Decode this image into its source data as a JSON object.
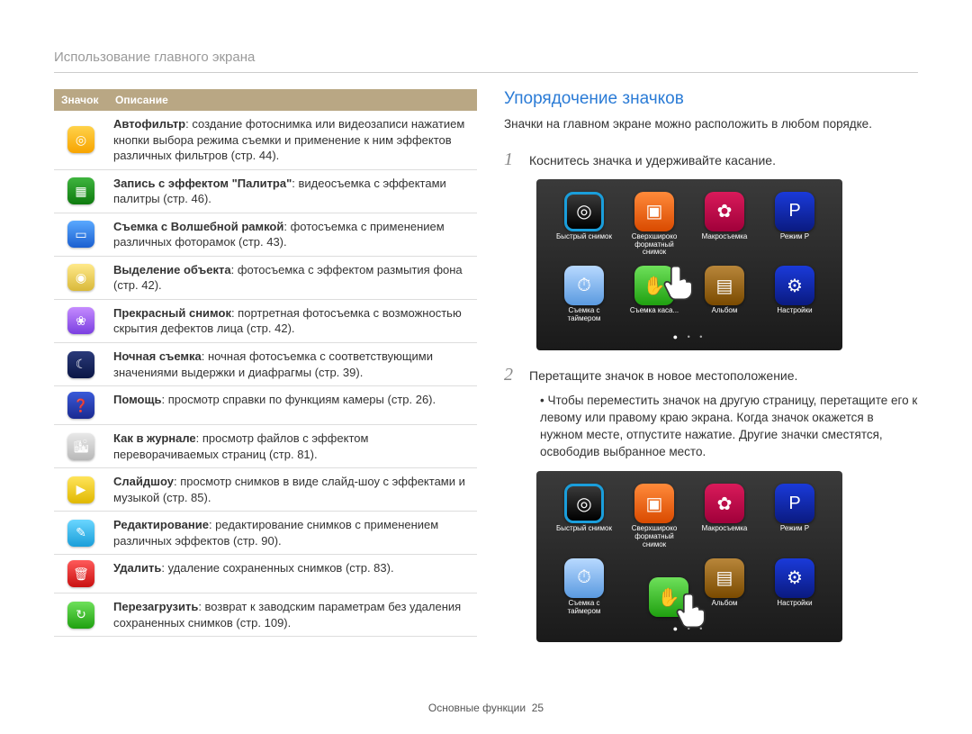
{
  "section_title": "Использование главного экрана",
  "table": {
    "header_icon": "Значок",
    "header_desc": "Описание",
    "rows": [
      {
        "icon_bg": "linear-gradient(#ffd24a,#f7a400)",
        "glyph": "◎",
        "bold": "Автофильтр",
        "rest": ": создание фотоснимка или видеозаписи нажатием кнопки выбора режима съемки и применение к ним эффектов различных фильтров (стр. 44)."
      },
      {
        "icon_bg": "linear-gradient(#3fb53f,#0e7a0e)",
        "glyph": "▦",
        "bold": "Запись с эффектом \"Палитра\"",
        "rest": ": видеосъемка с эффектами палитры (стр. 46)."
      },
      {
        "icon_bg": "linear-gradient(#5aa9ff,#1b5fd0)",
        "glyph": "▭",
        "bold": "Съемка с Волшебной рамкой",
        "rest": ": фотосъемка с применением различных фоторамок (стр. 43)."
      },
      {
        "icon_bg": "linear-gradient(#ffe98a,#d9b93a)",
        "glyph": "◉",
        "bold": "Выделение объекта",
        "rest": ": фотосъемка с эффектом размытия фона (стр. 42)."
      },
      {
        "icon_bg": "linear-gradient(#c58bff,#7a3fe0)",
        "glyph": "❀",
        "bold": "Прекрасный снимок",
        "rest": ": портретная фотосъемка с возможностью скрытия дефектов лица (стр. 42)."
      },
      {
        "icon_bg": "linear-gradient(#2a3a7a,#0a1645)",
        "glyph": "☾",
        "bold": "Ночная съемка",
        "rest": ": ночная фотосъемка с соответствующими значениями выдержки и диафрагмы (стр. 39)."
      },
      {
        "icon_bg": "linear-gradient(#3a5ad9,#1a2a90)",
        "glyph": "❓",
        "bold": "Помощь",
        "rest": ": просмотр справки по функциям камеры (стр. 26)."
      },
      {
        "icon_bg": "linear-gradient(#e8e8e8,#b8b8b8)",
        "glyph": "🏙",
        "bold": "Как в журнале",
        "rest": ": просмотр файлов с эффектом переворачиваемых страниц (стр. 81)."
      },
      {
        "icon_bg": "linear-gradient(#ffe45a,#e0b800)",
        "glyph": "▶",
        "bold": "Слайдшоу",
        "rest": ": просмотр снимков в виде слайд-шоу с эффектами и музыкой (стр. 85)."
      },
      {
        "icon_bg": "linear-gradient(#6ad6ff,#1a9ed9)",
        "glyph": "✎",
        "bold": "Редактирование",
        "rest": ": редактирование снимков с применением различных эффектов (стр. 90)."
      },
      {
        "icon_bg": "linear-gradient(#ff5a5a,#c91010)",
        "glyph": "🗑",
        "bold": "Удалить",
        "rest": ": удаление сохраненных снимков (стр. 83)."
      },
      {
        "icon_bg": "linear-gradient(#6ee05a,#1fa010)",
        "glyph": "↻",
        "bold": "Перезагрузить",
        "rest": ": возврат к заводским параметрам без удаления сохраненных снимков (стр. 109)."
      }
    ]
  },
  "right": {
    "heading": "Упорядочение значков",
    "intro": "Значки на главном экране можно расположить в любом порядке.",
    "step1_num": "1",
    "step1_text": "Коснитесь значка и удерживайте касание.",
    "step2_num": "2",
    "step2_text": "Перетащите значок в новое местоположение.",
    "bullet": "Чтобы переместить значок на другую страницу, перетащите его к левому или правому краю экрана. Когда значок окажется в нужном месте, отпустите нажатие. Другие значки сместятся, освободив выбранное место.",
    "preview1_icons": [
      {
        "bg": "linear-gradient(#3a3a3a,#000)",
        "border": "3px solid #1a9edb",
        "glyph": "◎",
        "label": "Быстрый снимок"
      },
      {
        "bg": "linear-gradient(#ff8a3a,#d94a00)",
        "glyph": "▣",
        "label": "Сверхшироко форматный снимок"
      },
      {
        "bg": "linear-gradient(#d91a5a,#a0003a)",
        "glyph": "✿",
        "label": "Макросъемка"
      },
      {
        "bg": "linear-gradient(#1a3ad9,#0a1a80)",
        "glyph": "P",
        "label": "Режим P"
      },
      {
        "bg": "linear-gradient(#b8d9ff,#5a9ae0)",
        "glyph": "⏱",
        "label": "Съемка с таймером"
      },
      {
        "bg": "linear-gradient(#6ee05a,#1fa010)",
        "glyph": "✋",
        "label": "Съемка каса..."
      },
      {
        "bg": "linear-gradient(#b8863a,#7a4a00)",
        "glyph": "▤",
        "label": "Альбом"
      },
      {
        "bg": "linear-gradient(#1a3ad9,#0a1a80)",
        "glyph": "⚙",
        "label": "Настройки"
      }
    ],
    "preview2_icons": [
      {
        "bg": "linear-gradient(#3a3a3a,#000)",
        "border": "3px solid #1a9edb",
        "glyph": "◎",
        "label": "Быстрый снимок"
      },
      {
        "bg": "linear-gradient(#ff8a3a,#d94a00)",
        "glyph": "▣",
        "label": "Сверхшироко форматный снимок"
      },
      {
        "bg": "linear-gradient(#d91a5a,#a0003a)",
        "glyph": "✿",
        "label": "Макросъемка"
      },
      {
        "bg": "linear-gradient(#1a3ad9,#0a1a80)",
        "glyph": "P",
        "label": "Режим P"
      },
      {
        "bg": "linear-gradient(#b8d9ff,#5a9ae0)",
        "glyph": "⏱",
        "label": "Съемка с таймером"
      },
      {
        "bg": "transparent",
        "glyph": "",
        "label": ""
      },
      {
        "bg": "linear-gradient(#b8863a,#7a4a00)",
        "glyph": "▤",
        "label": "Альбом"
      },
      {
        "bg": "linear-gradient(#1a3ad9,#0a1a80)",
        "glyph": "⚙",
        "label": "Настройки"
      }
    ],
    "drag_icon": {
      "bg": "linear-gradient(#6ee05a,#1fa010)",
      "glyph": "✋"
    }
  },
  "footer_label": "Основные функции",
  "footer_page": "25"
}
